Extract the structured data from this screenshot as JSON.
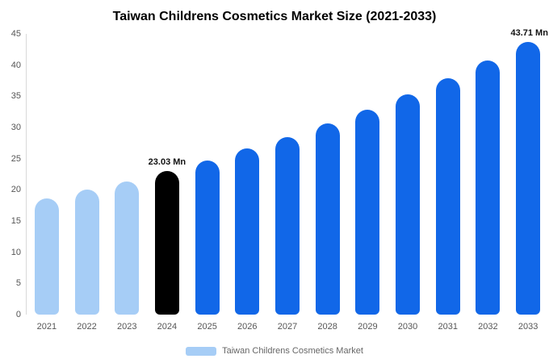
{
  "title": "Taiwan Childrens Cosmetics Market Size (2021-2033)",
  "legend": {
    "label": "Taiwan Childrens Cosmetics Market",
    "swatch_color": "#a6cdf6"
  },
  "colors": {
    "historical_bar": "#a6cdf6",
    "base_year_bar": "#000000",
    "forecast_bar": "#1167e8"
  },
  "chart_data": {
    "type": "bar",
    "title": "Taiwan Childrens Cosmetics Market Size (2021-2033)",
    "xlabel": "",
    "ylabel": "",
    "categories": [
      "2021",
      "2022",
      "2023",
      "2024",
      "2025",
      "2026",
      "2027",
      "2028",
      "2029",
      "2030",
      "2031",
      "2032",
      "2033"
    ],
    "values": [
      18.6,
      20.0,
      21.4,
      23.03,
      24.7,
      26.6,
      28.5,
      30.6,
      32.9,
      35.3,
      37.9,
      40.7,
      43.71
    ],
    "bar_colors": [
      "#a6cdf6",
      "#a6cdf6",
      "#a6cdf6",
      "#000000",
      "#1167e8",
      "#1167e8",
      "#1167e8",
      "#1167e8",
      "#1167e8",
      "#1167e8",
      "#1167e8",
      "#1167e8",
      "#1167e8"
    ],
    "ylim": [
      0,
      45
    ],
    "yticks": [
      0,
      5,
      10,
      15,
      20,
      25,
      30,
      35,
      40,
      45
    ],
    "grid": false,
    "legend_position": "bottom",
    "data_labels": [
      {
        "category": "2024",
        "text": "23.03 Mn"
      },
      {
        "category": "2033",
        "text": "43.71 Mn"
      }
    ]
  }
}
